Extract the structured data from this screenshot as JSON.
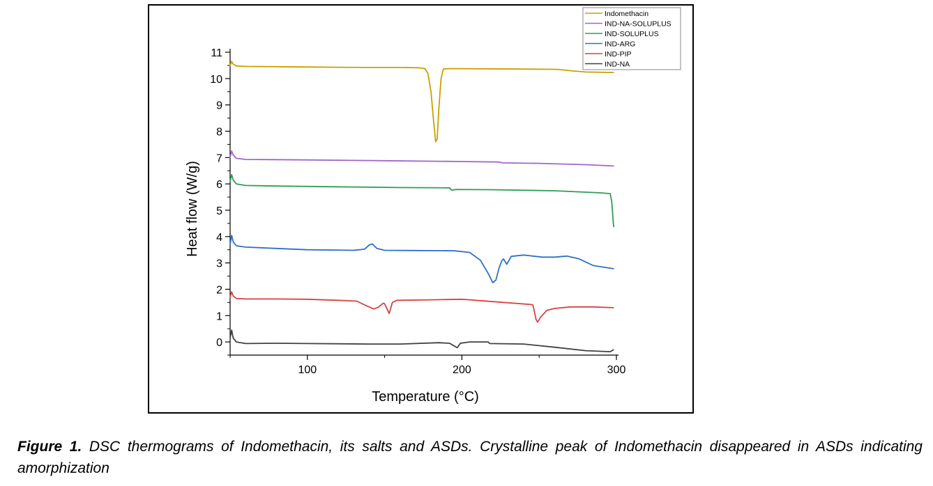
{
  "chart_data": {
    "type": "line",
    "title": "",
    "xlabel": "Temperature (°C)",
    "ylabel": "Heat flow (W/g)",
    "xlim": [
      50,
      300
    ],
    "ylim": [
      -0.5,
      11.2
    ],
    "xticks": [
      100,
      200,
      300
    ],
    "yticks": [
      0,
      1,
      2,
      3,
      4,
      5,
      6,
      7,
      8,
      9,
      10,
      11
    ],
    "grid": false,
    "legend_position": "top-right",
    "series": [
      {
        "name": "Indomethacin",
        "color": "#C9A000",
        "points": [
          [
            50,
            10.5
          ],
          [
            51,
            10.65
          ],
          [
            52,
            10.55
          ],
          [
            54,
            10.48
          ],
          [
            60,
            10.46
          ],
          [
            80,
            10.45
          ],
          [
            100,
            10.44
          ],
          [
            120,
            10.43
          ],
          [
            140,
            10.42
          ],
          [
            160,
            10.42
          ],
          [
            172,
            10.41
          ],
          [
            176,
            10.38
          ],
          [
            178,
            10.2
          ],
          [
            180,
            9.5
          ],
          [
            181.5,
            8.5
          ],
          [
            183,
            7.6
          ],
          [
            184,
            7.7
          ],
          [
            185,
            8.8
          ],
          [
            186.5,
            10.0
          ],
          [
            188,
            10.36
          ],
          [
            192,
            10.38
          ],
          [
            210,
            10.37
          ],
          [
            240,
            10.36
          ],
          [
            262,
            10.35
          ],
          [
            270,
            10.3
          ],
          [
            280,
            10.25
          ],
          [
            298,
            10.23
          ]
        ]
      },
      {
        "name": "IND-NA-SOLUPLUS",
        "color": "#A066C8",
        "points": [
          [
            50,
            7.0
          ],
          [
            51,
            7.25
          ],
          [
            52,
            7.1
          ],
          [
            54,
            6.97
          ],
          [
            60,
            6.93
          ],
          [
            80,
            6.92
          ],
          [
            100,
            6.91
          ],
          [
            150,
            6.88
          ],
          [
            200,
            6.85
          ],
          [
            224,
            6.83
          ],
          [
            226,
            6.8
          ],
          [
            250,
            6.78
          ],
          [
            280,
            6.73
          ],
          [
            298,
            6.68
          ]
        ]
      },
      {
        "name": "IND-SOLUPLUS",
        "color": "#2E9E55",
        "points": [
          [
            50,
            6.1
          ],
          [
            51,
            6.35
          ],
          [
            52,
            6.15
          ],
          [
            54,
            6.0
          ],
          [
            60,
            5.94
          ],
          [
            80,
            5.92
          ],
          [
            120,
            5.89
          ],
          [
            160,
            5.86
          ],
          [
            192,
            5.85
          ],
          [
            193,
            5.78
          ],
          [
            194,
            5.76
          ],
          [
            196,
            5.79
          ],
          [
            220,
            5.78
          ],
          [
            260,
            5.74
          ],
          [
            290,
            5.66
          ],
          [
            296,
            5.63
          ],
          [
            297,
            5.3
          ],
          [
            298,
            4.5
          ],
          [
            298.3,
            4.38
          ]
        ]
      },
      {
        "name": "IND-ARG",
        "color": "#2E6FC8",
        "points": [
          [
            50,
            3.7
          ],
          [
            51,
            4.05
          ],
          [
            52,
            3.8
          ],
          [
            54,
            3.65
          ],
          [
            60,
            3.6
          ],
          [
            80,
            3.55
          ],
          [
            100,
            3.5
          ],
          [
            130,
            3.48
          ],
          [
            137,
            3.52
          ],
          [
            140,
            3.68
          ],
          [
            142,
            3.72
          ],
          [
            145,
            3.55
          ],
          [
            150,
            3.48
          ],
          [
            170,
            3.47
          ],
          [
            195,
            3.46
          ],
          [
            205,
            3.4
          ],
          [
            212,
            3.1
          ],
          [
            217,
            2.6
          ],
          [
            220,
            2.25
          ],
          [
            222,
            2.35
          ],
          [
            224,
            2.8
          ],
          [
            226,
            3.1
          ],
          [
            227,
            3.15
          ],
          [
            229,
            2.95
          ],
          [
            232,
            3.25
          ],
          [
            240,
            3.3
          ],
          [
            252,
            3.22
          ],
          [
            260,
            3.22
          ],
          [
            268,
            3.26
          ],
          [
            276,
            3.15
          ],
          [
            285,
            2.9
          ],
          [
            298,
            2.78
          ]
        ]
      },
      {
        "name": "IND-PIP",
        "color": "#D94040",
        "points": [
          [
            50,
            1.7
          ],
          [
            51,
            1.9
          ],
          [
            52,
            1.75
          ],
          [
            54,
            1.65
          ],
          [
            60,
            1.63
          ],
          [
            80,
            1.63
          ],
          [
            100,
            1.62
          ],
          [
            120,
            1.58
          ],
          [
            132,
            1.55
          ],
          [
            138,
            1.38
          ],
          [
            143,
            1.25
          ],
          [
            146,
            1.32
          ],
          [
            149,
            1.47
          ],
          [
            150,
            1.45
          ],
          [
            152,
            1.2
          ],
          [
            153,
            1.08
          ],
          [
            155,
            1.5
          ],
          [
            158,
            1.58
          ],
          [
            180,
            1.6
          ],
          [
            200,
            1.62
          ],
          [
            205,
            1.6
          ],
          [
            220,
            1.53
          ],
          [
            245,
            1.42
          ],
          [
            246,
            1.4
          ],
          [
            248,
            0.85
          ],
          [
            249,
            0.75
          ],
          [
            251,
            0.95
          ],
          [
            255,
            1.2
          ],
          [
            260,
            1.27
          ],
          [
            270,
            1.33
          ],
          [
            285,
            1.33
          ],
          [
            298,
            1.3
          ]
        ]
      },
      {
        "name": "IND-NA",
        "color": "#404040",
        "points": [
          [
            50,
            0.15
          ],
          [
            51,
            0.45
          ],
          [
            52,
            0.15
          ],
          [
            54,
            0.0
          ],
          [
            60,
            -0.06
          ],
          [
            80,
            -0.05
          ],
          [
            100,
            -0.06
          ],
          [
            140,
            -0.08
          ],
          [
            160,
            -0.08
          ],
          [
            185,
            -0.03
          ],
          [
            192,
            -0.05
          ],
          [
            195,
            -0.15
          ],
          [
            197,
            -0.22
          ],
          [
            199,
            -0.05
          ],
          [
            205,
            0.0
          ],
          [
            217,
            0.0
          ],
          [
            218,
            -0.06
          ],
          [
            240,
            -0.08
          ],
          [
            260,
            -0.2
          ],
          [
            280,
            -0.33
          ],
          [
            296,
            -0.37
          ],
          [
            298,
            -0.3
          ]
        ]
      }
    ]
  },
  "caption": {
    "label": "Figure 1.",
    "text": " DSC thermograms of Indomethacin, its salts and ASDs. Crystalline peak of Indomethacin disappeared in ASDs indicating amorphization"
  }
}
